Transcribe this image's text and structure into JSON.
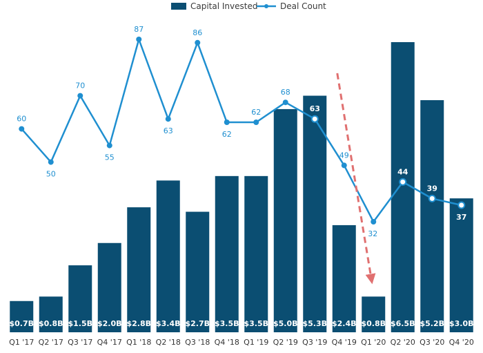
{
  "chart_data": {
    "type": "bar",
    "categories": [
      "Q1 '17",
      "Q2 '17",
      "Q3 '17",
      "Q4 '17",
      "Q1 '18",
      "Q2 '18",
      "Q3 '18",
      "Q4 '18",
      "Q1 '19",
      "Q2 '19",
      "Q3 '19",
      "Q4 '19",
      "Q1 '20",
      "Q2 '20",
      "Q3 '20",
      "Q4 '20"
    ],
    "series": [
      {
        "name": "Capital Invested",
        "type": "bar",
        "color": "#0b4e72",
        "values": [
          0.7,
          0.8,
          1.5,
          2.0,
          2.8,
          3.4,
          2.7,
          3.5,
          3.5,
          5.0,
          5.3,
          2.4,
          0.8,
          6.5,
          5.2,
          3.0
        ],
        "labels": [
          "$0.7B",
          "$0.8B",
          "$1.5B",
          "$2.0B",
          "$2.8B",
          "$3.4B",
          "$2.7B",
          "$3.5B",
          "$3.5B",
          "$5.0B",
          "$5.3B",
          "$2.4B",
          "$0.8B",
          "$6.5B",
          "$5.2B",
          "$3.0B"
        ]
      },
      {
        "name": "Deal Count",
        "type": "line",
        "color": "#1f8fd0",
        "values": [
          60,
          50,
          70,
          55,
          87,
          63,
          86,
          62,
          62,
          68,
          63,
          49,
          32,
          44,
          39,
          37
        ]
      }
    ],
    "annotation": {
      "type": "dashed-arrow",
      "color": "#e07070",
      "from_category": "Q4 '19",
      "to_category": "Q1 '20",
      "direction": "down"
    },
    "legend": {
      "placement": "top-center"
    },
    "grid": false
  }
}
